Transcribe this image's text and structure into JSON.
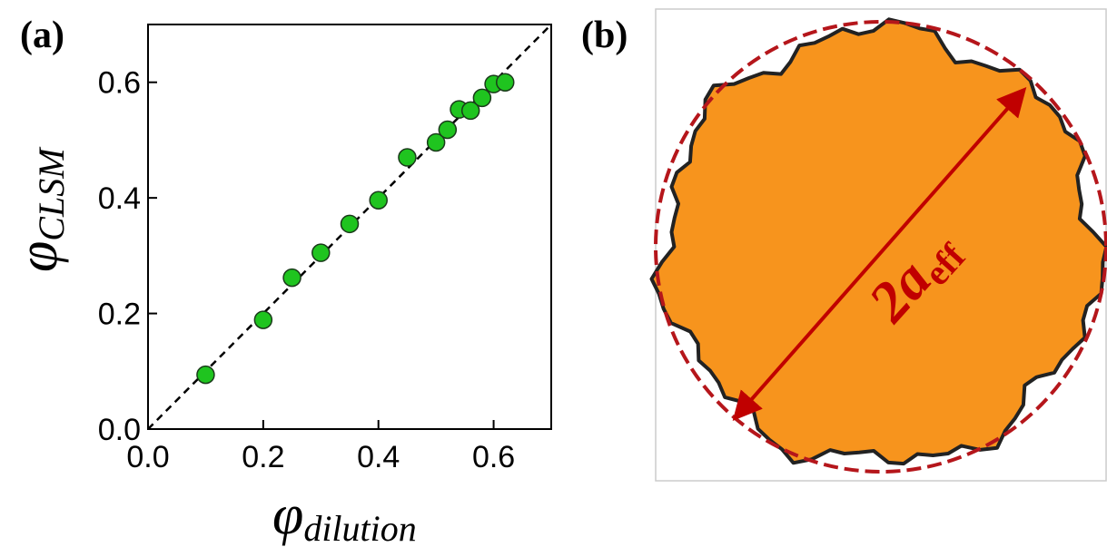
{
  "chart_data": {
    "type": "scatter",
    "panel_label": "(a)",
    "xlabel": {
      "symbol": "φ",
      "subscript": "dilution"
    },
    "ylabel": {
      "symbol": "φ",
      "subscript": "CLSM"
    },
    "x": [
      0.1,
      0.2,
      0.25,
      0.3,
      0.35,
      0.4,
      0.45,
      0.5,
      0.52,
      0.54,
      0.56,
      0.58,
      0.6,
      0.62
    ],
    "values": [
      0.094,
      0.189,
      0.262,
      0.305,
      0.355,
      0.396,
      0.47,
      0.496,
      0.518,
      0.553,
      0.551,
      0.573,
      0.597,
      0.6
    ],
    "color": "#1fc41f",
    "xlim": [
      0,
      0.7
    ],
    "ylim": [
      0,
      0.7
    ],
    "xticks": [
      {
        "value": 0,
        "label": "0.0"
      },
      0.2,
      0.4,
      0.6
    ],
    "yticks": [
      {
        "value": 0,
        "label": "0.0"
      },
      0.2,
      0.4,
      0.6
    ],
    "identity_line": true
  },
  "diagram": {
    "panel_label": "(b)",
    "annotation": {
      "main": "2a",
      "subscript": "eff"
    }
  }
}
